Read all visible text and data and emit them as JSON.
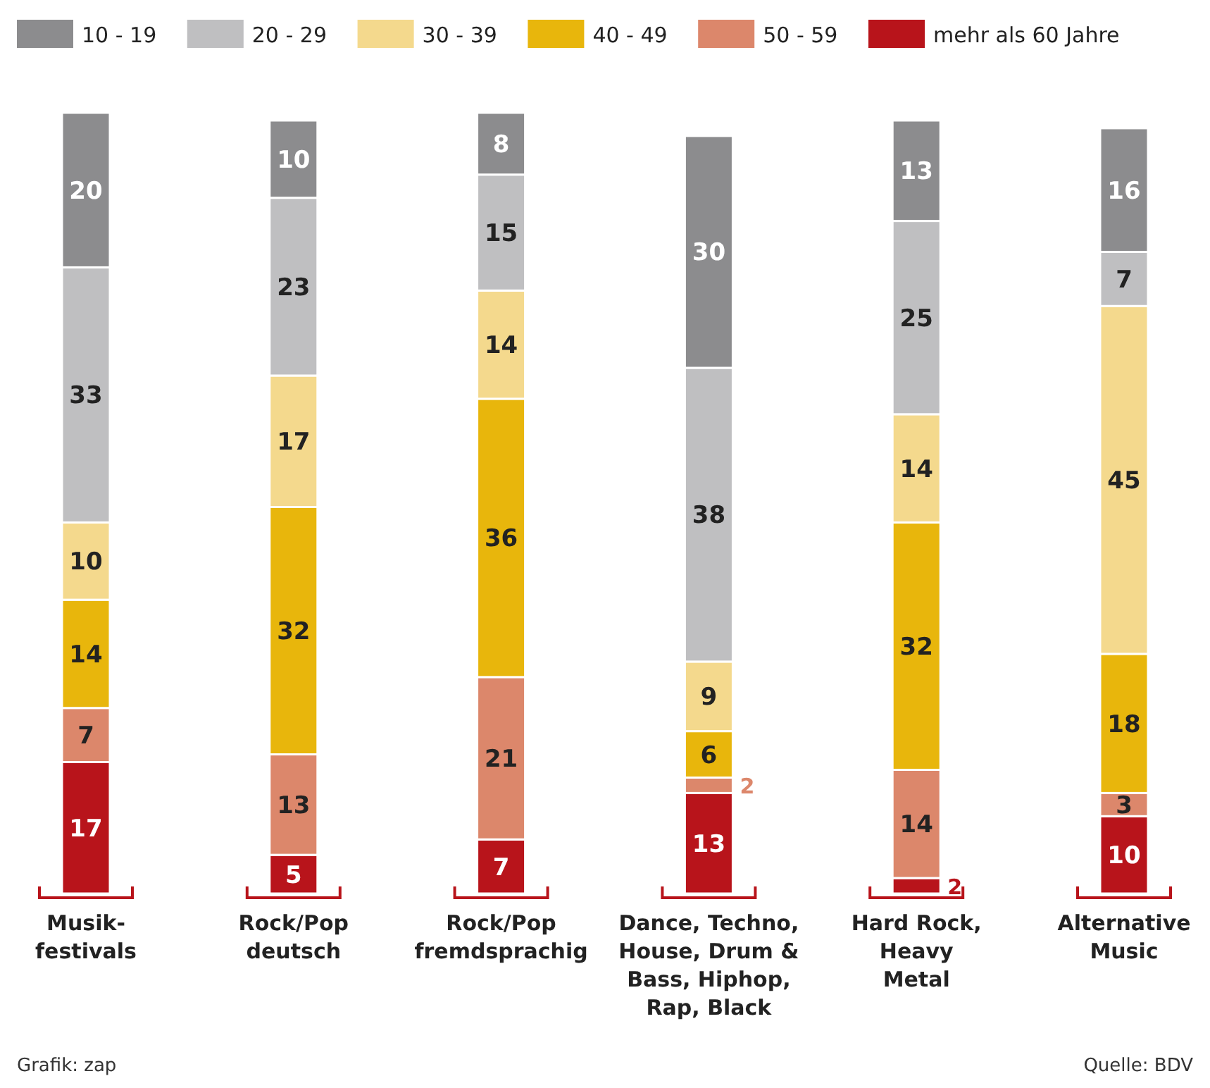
{
  "chart_data": {
    "type": "bar",
    "stacked": true,
    "data_labels": true,
    "legend": "top",
    "categories": [
      "Musik-\nfestivals",
      "Rock/Pop\ndeutsch",
      "Rock/Pop\nfremdsprachig",
      "Dance, Techno,\nHouse, Drum &\nBass, Hiphop,\nRap, Black",
      "Hard Rock,\nHeavy\nMetal",
      "Alternative\nMusic"
    ],
    "series": [
      {
        "name": "mehr als 60 Jahre",
        "color": "#b8141b",
        "values": [
          17,
          5,
          7,
          13,
          2,
          10
        ]
      },
      {
        "name": "50 - 59",
        "color": "#dc876b",
        "values": [
          7,
          13,
          21,
          2,
          14,
          3
        ]
      },
      {
        "name": "40 - 49",
        "color": "#e8b60c",
        "values": [
          14,
          32,
          36,
          6,
          32,
          18
        ]
      },
      {
        "name": "30 - 39",
        "color": "#f4d98d",
        "values": [
          10,
          17,
          14,
          9,
          14,
          45
        ]
      },
      {
        "name": "20 - 29",
        "color": "#bfbfc1",
        "values": [
          33,
          23,
          15,
          38,
          25,
          7
        ]
      },
      {
        "name": "10 - 19",
        "color": "#8c8c8e",
        "values": [
          20,
          10,
          8,
          30,
          13,
          16
        ]
      }
    ],
    "annotations": [
      "Grafik: zap",
      "Quelle: BDV"
    ]
  }
}
